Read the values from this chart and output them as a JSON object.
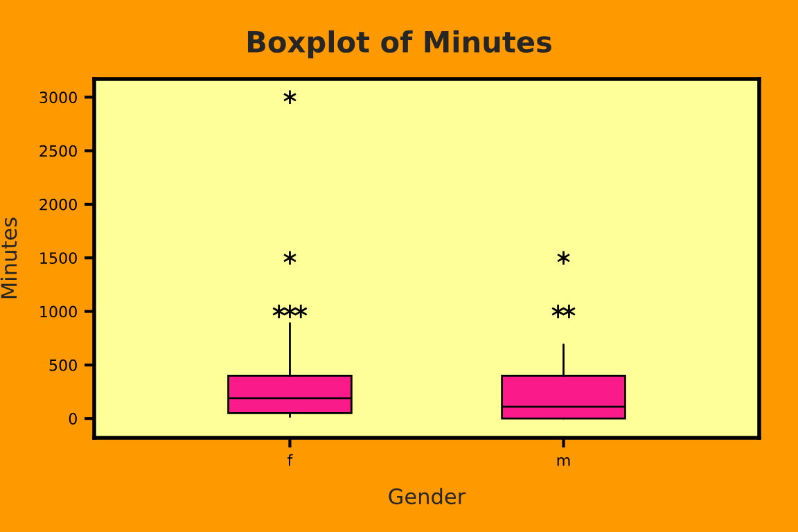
{
  "chart_data": {
    "type": "box",
    "title": "Boxplot of Minutes",
    "xlabel": "Gender",
    "ylabel": "Minutes",
    "categories": [
      "f",
      "m"
    ],
    "color": "#fa1a8a",
    "boxes": [
      {
        "low": 15,
        "q1": 50,
        "median": 190,
        "q3": 400,
        "high": 890,
        "outliers": [
          1000,
          1000,
          1000,
          1500,
          3000
        ]
      },
      {
        "low": 0,
        "q1": 0,
        "median": 110,
        "q3": 400,
        "high": 690,
        "outliers": [
          1000,
          1000,
          1500
        ]
      }
    ],
    "ylim": [
      -180,
      3170
    ],
    "yticks": [
      0,
      500,
      1000,
      1500,
      2000,
      2500,
      3000
    ],
    "grid": false
  }
}
